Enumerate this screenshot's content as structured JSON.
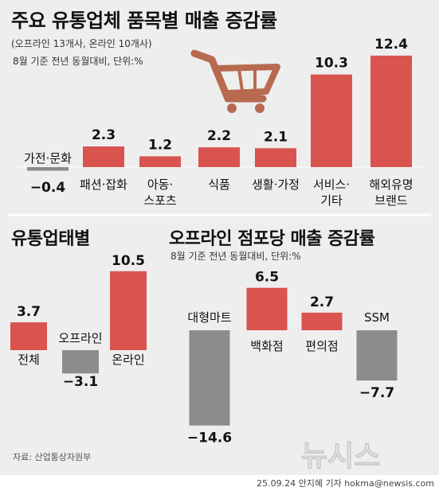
{
  "colors": {
    "positive": "#d9534f",
    "negative": "#8c8c8c",
    "background": "#eeeeee"
  },
  "icons": {
    "cart": "shopping-cart-icon"
  },
  "chart_data": [
    {
      "type": "bar",
      "title": "주요 유통업체 품목별 매출 증감률",
      "subtitle1": "(오프라인 13개사, 온라인 10개사)",
      "subtitle2": "8월 기준 전년 동월대비, 단위:%",
      "categories": [
        "가전·문화",
        "패션·잡화",
        "아동·스포츠",
        "식품",
        "생활·가정",
        "서비스·기타",
        "해외유명 브랜드"
      ],
      "category_lines": [
        [
          "가전·문화"
        ],
        [
          "패션·잡화"
        ],
        [
          "아동·",
          "스포츠"
        ],
        [
          "식품"
        ],
        [
          "생활·가정"
        ],
        [
          "서비스·",
          "기타"
        ],
        [
          "해외유명",
          "브랜드"
        ]
      ],
      "values": [
        -0.4,
        2.3,
        1.2,
        2.2,
        2.1,
        10.3,
        12.4
      ],
      "value_labels": [
        "−0.4",
        "2.3",
        "1.2",
        "2.2",
        "2.1",
        "10.3",
        "12.4"
      ]
    },
    {
      "type": "bar",
      "title": "유통업태별",
      "categories": [
        "전체",
        "오프라인",
        "온라인"
      ],
      "values": [
        3.7,
        -3.1,
        10.5
      ],
      "value_labels": [
        "3.7",
        "−3.1",
        "10.5"
      ]
    },
    {
      "type": "bar",
      "title": "오프라인 점포당 매출 증감률",
      "subtitle": "8월 기준 전년 동월대비, 단위:%",
      "categories": [
        "대형마트",
        "백화점",
        "편의점",
        "SSM"
      ],
      "values": [
        -14.6,
        6.5,
        2.7,
        -7.7
      ],
      "value_labels": [
        "−14.6",
        "6.5",
        "2.7",
        "−7.7"
      ]
    }
  ],
  "source": "자료: 산업통상자원부",
  "credit": "25.09.24 안지혜 기자 hokma@newsis.com",
  "watermark": "뉴시스"
}
